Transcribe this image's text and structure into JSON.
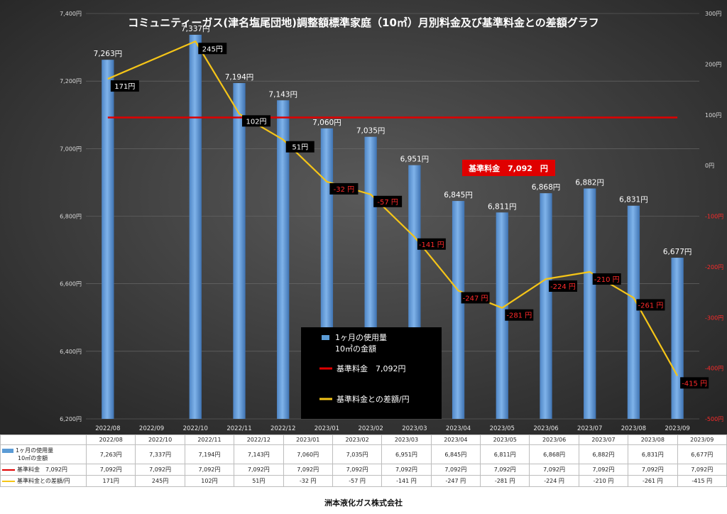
{
  "chart_data": {
    "type": "bar",
    "title": "コミュニティーガス(津名塩尾団地)調整額標準家庭（10㎥）月別料金及び基準料金との差額グラフ",
    "categories": [
      "2022/08",
      "2022/09",
      "2022/10",
      "2022/11",
      "2022/12",
      "2023/01",
      "2023/02",
      "2023/03",
      "2023/04",
      "2023/05",
      "2023/06",
      "2023/07",
      "2023/08",
      "2023/09"
    ],
    "y_left": {
      "min": 6200,
      "max": 7400,
      "step": 200,
      "unit": "円"
    },
    "y_right": {
      "min": -500,
      "max": 300,
      "step": 100,
      "unit": "円"
    },
    "series": [
      {
        "name": "1ヶ月の使用量 10㎥の金額",
        "kind": "bar",
        "axis": "left",
        "color": "#5b9bd5",
        "x": [
          "2022/08",
          "2022/10",
          "2022/11",
          "2022/12",
          "2023/01",
          "2023/02",
          "2023/03",
          "2023/04",
          "2023/05",
          "2023/06",
          "2023/07",
          "2023/08",
          "2023/09"
        ],
        "values": [
          7263,
          7337,
          7194,
          7143,
          7060,
          7035,
          6951,
          6845,
          6811,
          6868,
          6882,
          6831,
          6677
        ],
        "labels": [
          "7,263円",
          "7,337円",
          "7,194円",
          "7,143円",
          "7,060円",
          "7,035円",
          "6,951円",
          "6,845円",
          "6,811円",
          "6,868円",
          "6,882円",
          "6,831円",
          "6,677円"
        ]
      },
      {
        "name": "基準料金 7,092円",
        "kind": "line",
        "axis": "left",
        "color": "#e00000",
        "value": 7092
      },
      {
        "name": "基準料金との差額/円",
        "kind": "line",
        "axis": "right",
        "color": "#f5c518",
        "x": [
          "2022/08",
          "2022/10",
          "2022/11",
          "2022/12",
          "2023/01",
          "2023/02",
          "2023/03",
          "2023/04",
          "2023/05",
          "2023/06",
          "2023/07",
          "2023/08",
          "2023/09"
        ],
        "values": [
          171,
          245,
          102,
          51,
          -32,
          -57,
          -141,
          -247,
          -281,
          -224,
          -210,
          -261,
          -415
        ],
        "labels": [
          "171円",
          "245円",
          "102円",
          "51円",
          "-32 円",
          "-57 円",
          "-141 円",
          "-247 円",
          "-281 円",
          "-224 円",
          "-210 円",
          "-261 円",
          "-415 円"
        ]
      }
    ],
    "legend": [
      [
        "1ヶ月の使用量",
        "10㎥の金額"
      ],
      "基準料金　7,092円",
      "基準料金との差額/円"
    ],
    "annotations": {
      "base_price_box": "基準料金　7,092　円"
    },
    "grid": true,
    "colors": {
      "positive_label": "#ffffff",
      "negative_label": "#ff2a2a",
      "negative_tick": "#ff2a2a"
    }
  },
  "table": {
    "headers": [
      "2022/08",
      "2022/10",
      "2022/11",
      "2022/12",
      "2023/01",
      "2023/02",
      "2023/03",
      "2023/04",
      "2023/05",
      "2023/06",
      "2023/07",
      "2023/08",
      "2023/09"
    ],
    "rows": [
      {
        "label": [
          "1ヶ月の使用量",
          "10㎥の金額"
        ],
        "swatch": "bar",
        "values": [
          "7,263円",
          "7,337円",
          "7,194円",
          "7,143円",
          "7,060円",
          "7,035円",
          "6,951円",
          "6,845円",
          "6,811円",
          "6,868円",
          "6,882円",
          "6,831円",
          "6,677円"
        ]
      },
      {
        "label": [
          "基準料金　7,092円"
        ],
        "swatch": "red-line",
        "values": [
          "7,092円",
          "7,092円",
          "7,092円",
          "7,092円",
          "7,092円",
          "7,092円",
          "7,092円",
          "7,092円",
          "7,092円",
          "7,092円",
          "7,092円",
          "7,092円",
          "7,092円"
        ]
      },
      {
        "label": [
          "基準料金との差額/円"
        ],
        "swatch": "yellow-line",
        "values": [
          "171円",
          "245円",
          "102円",
          "51円",
          "-32 円",
          "-57 円",
          "-141 円",
          "-247 円",
          "-281 円",
          "-224 円",
          "-210 円",
          "-261 円",
          "-415 円"
        ]
      }
    ]
  },
  "footer": {
    "company": "洲本液化ガス株式会社"
  }
}
